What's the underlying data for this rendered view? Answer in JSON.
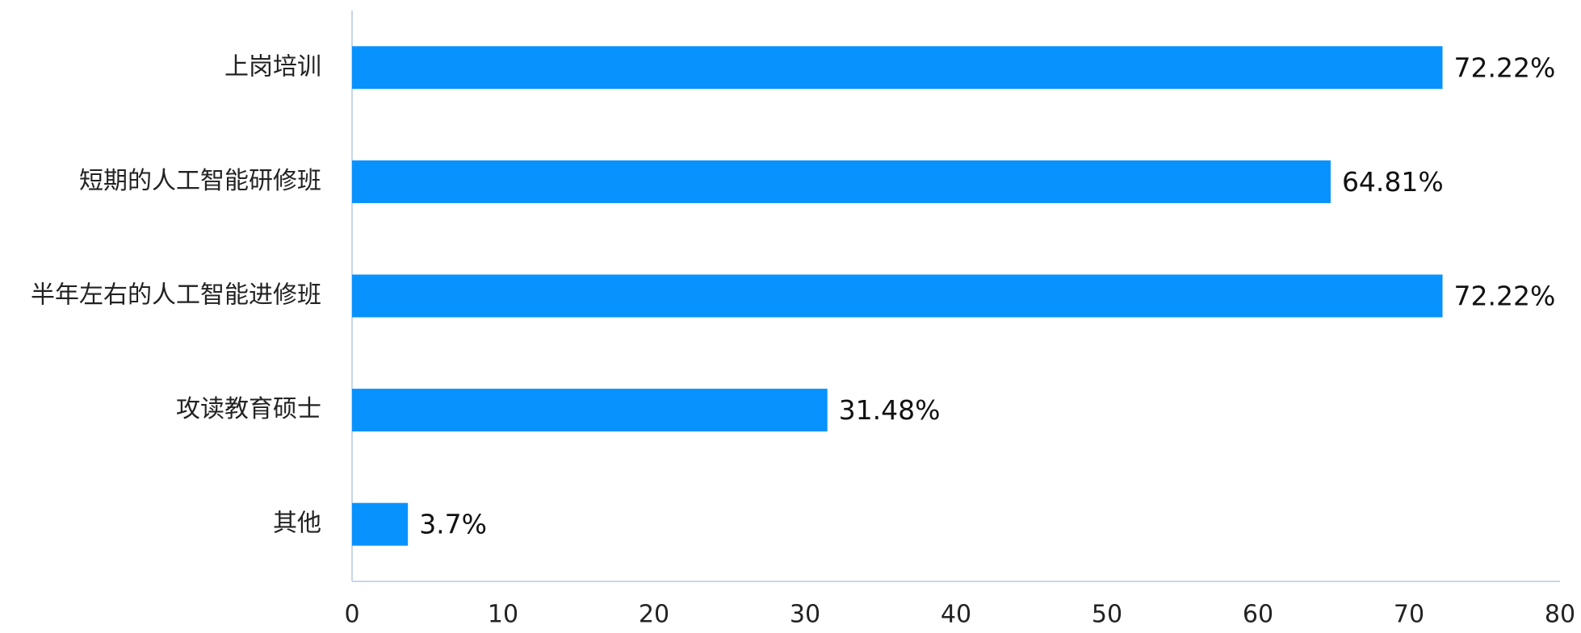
{
  "chart_data": {
    "type": "bar",
    "orientation": "horizontal",
    "categories": [
      "上岗培训",
      "短期的人工智能研修班",
      "半年左右的人工智能进修班",
      "攻读教育硕士",
      "其他"
    ],
    "values": [
      72.22,
      64.81,
      72.22,
      31.48,
      3.7
    ],
    "value_labels": [
      "72.22%",
      "64.81%",
      "72.22%",
      "31.48%",
      "3.7%"
    ],
    "color": "#0892fe",
    "xlim": [
      0,
      80
    ],
    "xticks": [
      0,
      10,
      20,
      30,
      40,
      50,
      60,
      70,
      80
    ],
    "grid": false
  }
}
